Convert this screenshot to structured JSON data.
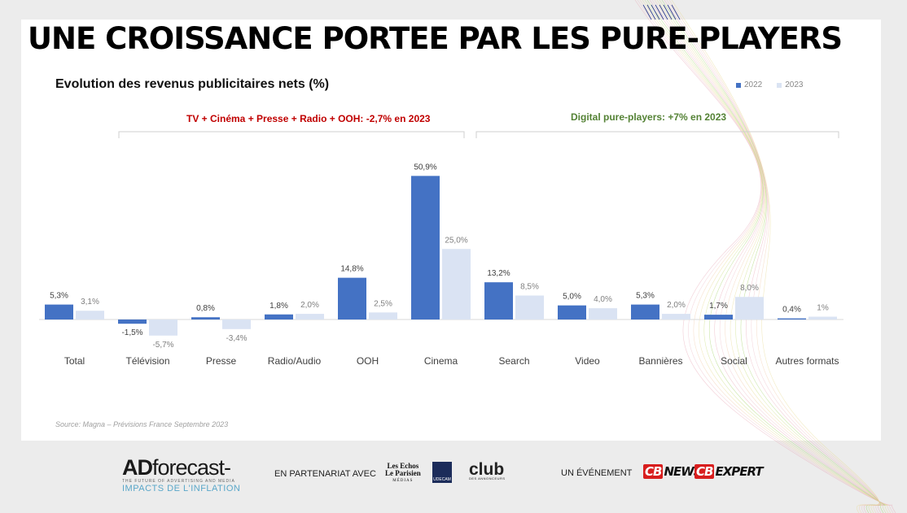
{
  "slide": {
    "title": "UNE CROISSANCE PORTEE PAR LES PURE-PLAYERS",
    "source": "Source: Magna – Prévisions France Septembre 2023"
  },
  "groups": {
    "traditional": {
      "label": "TV + Cinéma + Presse + Radio + OOH:  -2,7% en 2023",
      "color": "#c00000"
    },
    "digital": {
      "label": "Digital pure-players:  +7% en 2023",
      "color": "#548235"
    }
  },
  "colors": {
    "series_2022": "#4472c4",
    "series_2023": "#dae3f3"
  },
  "chart_data": {
    "type": "bar",
    "title": "Evolution des revenus publicitaires nets (%)",
    "legend_position": "top-right",
    "categories": [
      "Total",
      "Télévision",
      "Presse",
      "Radio/Audio",
      "OOH",
      "Cinema",
      "Search",
      "Video",
      "Bannières",
      "Social",
      "Autres formats"
    ],
    "series": [
      {
        "name": "2022",
        "values": [
          5.3,
          -1.5,
          0.8,
          1.8,
          14.8,
          50.9,
          13.2,
          5.0,
          5.3,
          1.7,
          0.4
        ],
        "labels": [
          "5,3%",
          "-1,5%",
          "0,8%",
          "1,8%",
          "14,8%",
          "50,9%",
          "13,2%",
          "5,0%",
          "5,3%",
          "1,7%",
          "0,4%"
        ]
      },
      {
        "name": "2023",
        "values": [
          3.1,
          -5.7,
          -3.4,
          2.0,
          2.5,
          25.0,
          8.5,
          4.0,
          2.0,
          8.0,
          1.0
        ],
        "labels": [
          "3,1%",
          "-5,7%",
          "-3,4%",
          "2,0%",
          "2,5%",
          "25,0%",
          "8,5%",
          "4,0%",
          "2,0%",
          "8,0%",
          "1%"
        ]
      }
    ],
    "grid": false
  },
  "footer": {
    "brand_main": "forecast-",
    "brand_prefix": "AD",
    "brand_tagline": "THE FUTURE OF ADVERTISING AND MEDIA",
    "brand_sub": "IMPACTS DE L'INFLATION",
    "partner_label": "EN PARTENARIAT AVEC",
    "les_echos": "Les Echos",
    "le_parisien": "Le Parisien",
    "medias": "MÉDIAS",
    "udecam": "UDECAM",
    "club": "club",
    "club_sub": "DES ANNONCEURS",
    "event_label": "UN ÉVÉNEMENT",
    "cb_news": "NEWS",
    "cb_expert": "EXPERT",
    "cb_badge": "CB"
  }
}
